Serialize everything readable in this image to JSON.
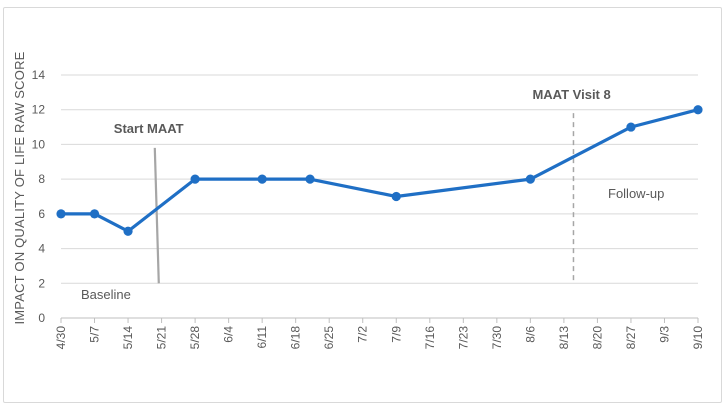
{
  "chart_data": {
    "type": "line",
    "ylabel": "IMPACT ON QUALITY OF LIFE RAW SCORE",
    "xlabel": "",
    "ylim": [
      0,
      14
    ],
    "yticks": [
      0,
      2,
      4,
      6,
      8,
      10,
      12,
      14
    ],
    "grid": true,
    "categories": [
      "4/30",
      "5/7",
      "5/14",
      "5/21",
      "5/28",
      "6/4",
      "6/11",
      "6/18",
      "6/25",
      "7/2",
      "7/9",
      "7/16",
      "7/23",
      "7/30",
      "8/6",
      "8/13",
      "8/20",
      "8/27",
      "9/3",
      "9/10"
    ],
    "series": [
      {
        "color": "#1f6fc5",
        "points": [
          {
            "x": "4/30",
            "y": 6
          },
          {
            "x": "5/7",
            "y": 6
          },
          {
            "x": "5/14",
            "y": 5
          },
          {
            "x": "5/28",
            "y": 8
          },
          {
            "x": "6/11",
            "y": 8
          },
          {
            "x": "6/21",
            "y": 8
          },
          {
            "x": "7/9",
            "y": 7
          },
          {
            "x": "8/6",
            "y": 8
          },
          {
            "x": "8/27",
            "y": 11
          },
          {
            "x": "9/10",
            "y": 12
          }
        ]
      }
    ],
    "annotations": {
      "start_line": {
        "label": "Start MAAT",
        "x": "5/20",
        "y_from": 2,
        "y_to": 9.8,
        "color": "#a6a6a6",
        "style": "solid"
      },
      "visit_line": {
        "label": "MAAT Visit 8",
        "x": "8/15",
        "y_from": 2,
        "y_to": 11.8,
        "color": "#a6a6a6",
        "style": "dashed"
      },
      "baseline_label": "Baseline",
      "followup_label": "Follow-up"
    },
    "colors": {
      "grid": "#d9d9d9",
      "axis": "#bfbfbf",
      "text": "#595959"
    }
  }
}
